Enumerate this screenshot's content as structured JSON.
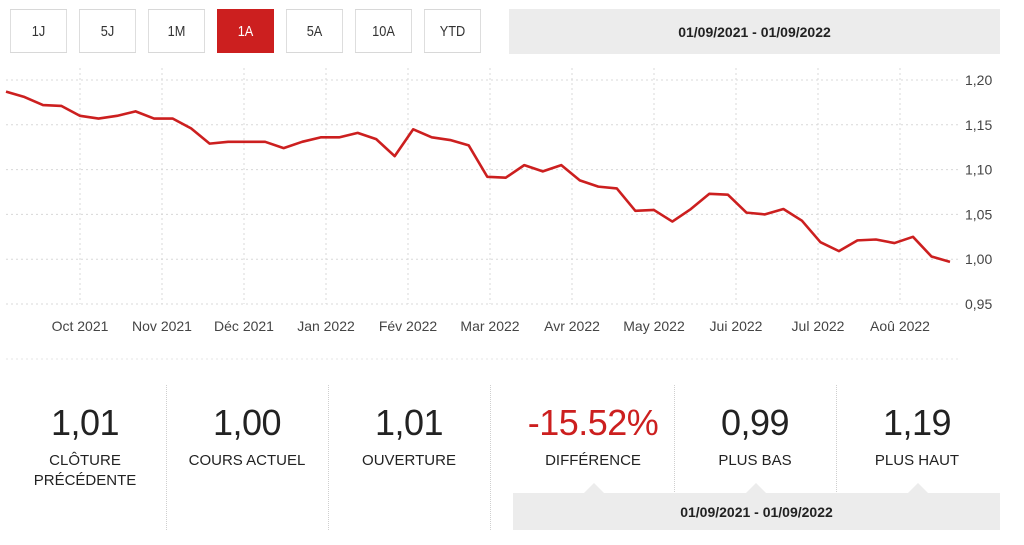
{
  "range_buttons": [
    {
      "label": "1J"
    },
    {
      "label": "5J"
    },
    {
      "label": "1M"
    },
    {
      "label": "1A",
      "active": true
    },
    {
      "label": "5A"
    },
    {
      "label": "10A"
    },
    {
      "label": "YTD"
    }
  ],
  "date_range": "01/09/2021 - 01/09/2022",
  "colors": {
    "accent": "#cc1f1f",
    "panel": "#ececec"
  },
  "chart_data": {
    "type": "line",
    "x_ticks": [
      "Oct 2021",
      "Nov 2021",
      "Déc 2021",
      "Jan 2022",
      "Fév 2022",
      "Mar 2022",
      "Avr 2022",
      "May 2022",
      "Jui 2022",
      "Jul 2022",
      "Aoû 2022"
    ],
    "y_ticks": [
      "1,20",
      "1,15",
      "1,10",
      "1,05",
      "1,00",
      "0,95"
    ],
    "ylim": [
      0.95,
      1.2
    ],
    "grid": true,
    "series": [
      {
        "values": [
          1.187,
          1.181,
          1.172,
          1.171,
          1.16,
          1.157,
          1.16,
          1.165,
          1.157,
          1.157,
          1.146,
          1.129,
          1.131,
          1.131,
          1.131,
          1.124,
          1.131,
          1.136,
          1.136,
          1.141,
          1.134,
          1.115,
          1.145,
          1.136,
          1.133,
          1.127,
          1.092,
          1.091,
          1.105,
          1.098,
          1.105,
          1.088,
          1.081,
          1.079,
          1.054,
          1.055,
          1.042,
          1.056,
          1.073,
          1.072,
          1.052,
          1.05,
          1.056,
          1.043,
          1.019,
          1.009,
          1.021,
          1.022,
          1.018,
          1.025,
          1.003,
          0.997
        ]
      }
    ]
  },
  "stats": [
    {
      "value": "1,01",
      "label": "CLÔTURE PRÉCÉDENTE",
      "negative": false
    },
    {
      "value": "1,00",
      "label": "COURS ACTUEL",
      "negative": false
    },
    {
      "value": "1,01",
      "label": "OUVERTURE",
      "negative": false
    },
    {
      "value": "-15.52%",
      "label": "DIFFÉRENCE",
      "negative": true
    },
    {
      "value": "0,99",
      "label": "PLUS BAS",
      "negative": false
    },
    {
      "value": "1,19",
      "label": "PLUS HAUT",
      "negative": false
    }
  ],
  "bottom_date_range": "01/09/2021 - 01/09/2022"
}
